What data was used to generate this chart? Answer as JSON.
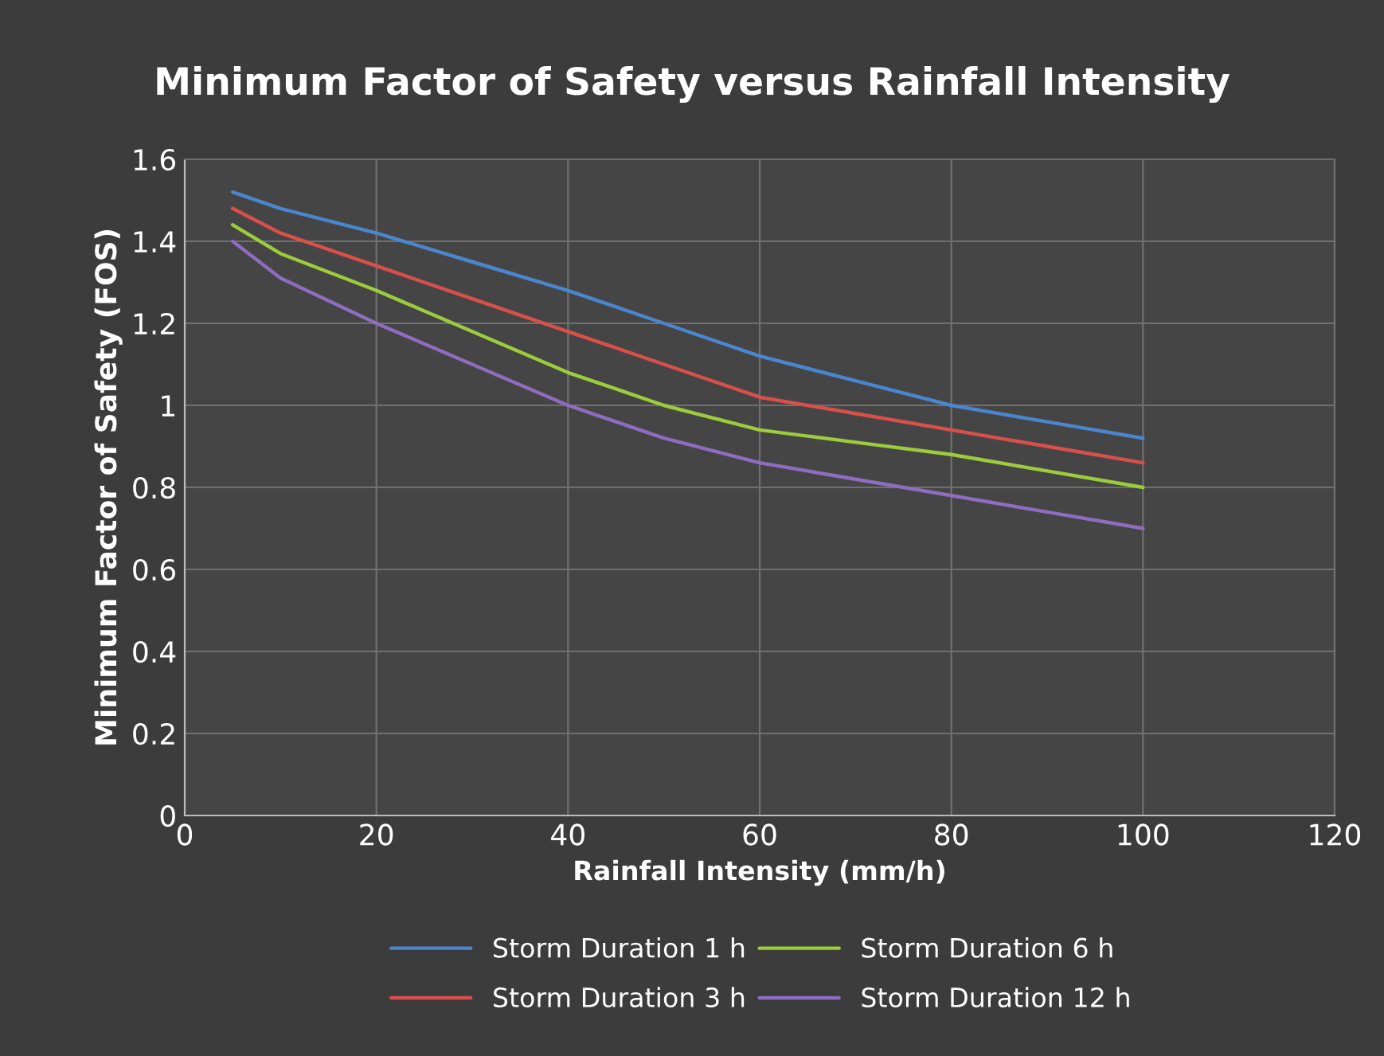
{
  "chart_data": {
    "type": "line",
    "title": "Minimum Factor of Safety versus Rainfall Intensity",
    "xlabel": "Rainfall Intensity (mm/h)",
    "ylabel": "Minimum Factor of Safety (FOS)",
    "x": [
      5,
      10,
      20,
      30,
      40,
      50,
      60,
      70,
      80,
      90,
      100
    ],
    "series": [
      {
        "name": "Storm Duration 1 h",
        "color": "#4a86d0",
        "values": [
          1.52,
          1.48,
          1.42,
          1.35,
          1.28,
          1.2,
          1.12,
          1.06,
          1.0,
          0.96,
          0.92
        ]
      },
      {
        "name": "Storm Duration 3 h",
        "color": "#d9504a",
        "values": [
          1.48,
          1.42,
          1.34,
          1.26,
          1.18,
          1.1,
          1.02,
          0.98,
          0.94,
          0.9,
          0.86
        ]
      },
      {
        "name": "Storm Duration 6 h",
        "color": "#9ccc3c",
        "values": [
          1.44,
          1.37,
          1.28,
          1.18,
          1.08,
          1.0,
          0.94,
          0.91,
          0.88,
          0.84,
          0.8
        ]
      },
      {
        "name": "Storm Duration 12 h",
        "color": "#8e6cc0",
        "values": [
          1.4,
          1.31,
          1.2,
          1.1,
          1.0,
          0.92,
          0.86,
          0.82,
          0.78,
          0.74,
          0.7
        ]
      }
    ],
    "xlim": [
      0,
      120
    ],
    "xticks": [
      0,
      20,
      40,
      60,
      80,
      100,
      120
    ],
    "ylim": [
      0,
      1.6
    ],
    "yticks": [
      0,
      {
        "value": 0.2,
        "label": "0.2"
      },
      {
        "value": 0.4,
        "label": "0.4"
      },
      {
        "value": 0.6,
        "label": "0.6"
      },
      {
        "value": 0.8,
        "label": "0.8"
      },
      {
        "value": 1,
        "label": "1"
      },
      {
        "value": 1.2,
        "label": "1.2"
      },
      {
        "value": 1.4,
        "label": "1.4"
      },
      {
        "value": 1.6,
        "label": "1.6"
      }
    ],
    "grid": true,
    "legend": "bottom",
    "marker": "none",
    "line_style": "solid"
  }
}
